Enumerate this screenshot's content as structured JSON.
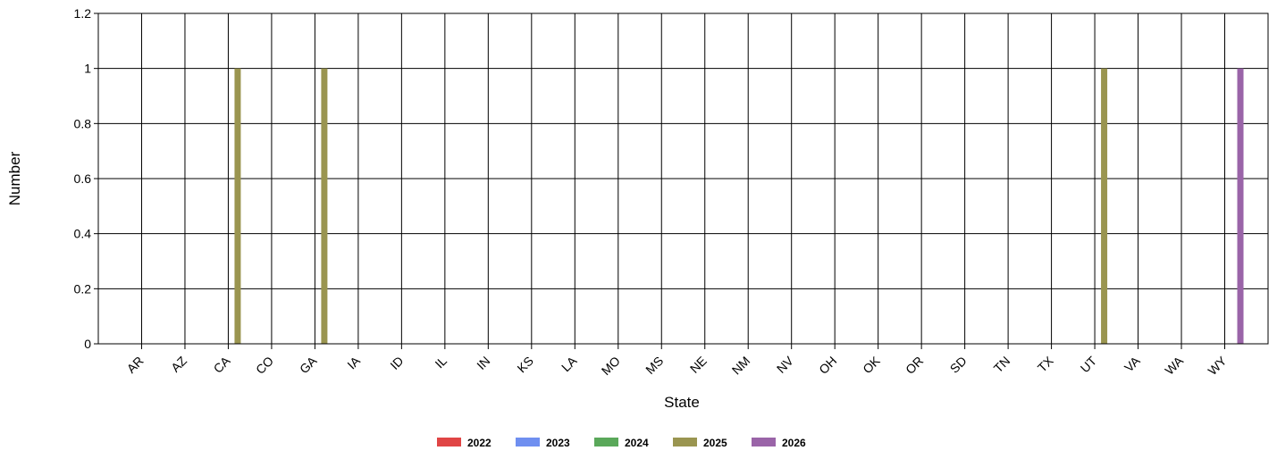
{
  "chart_data": {
    "type": "bar",
    "xlabel": "State",
    "ylabel": "Number",
    "ylim": [
      0,
      1.2
    ],
    "yticks": [
      "0",
      "0.2",
      "0.4",
      "0.6",
      "0.8",
      "1",
      "1.2"
    ],
    "grid": true,
    "legend_placement": "bottom",
    "categories": [
      "AR",
      "AZ",
      "CA",
      "CO",
      "GA",
      "IA",
      "ID",
      "IL",
      "IN",
      "KS",
      "LA",
      "MO",
      "MS",
      "NE",
      "NM",
      "NV",
      "OH",
      "OK",
      "OR",
      "SD",
      "TN",
      "TX",
      "UT",
      "VA",
      "WA",
      "WY"
    ],
    "series": [
      {
        "name": "2022",
        "color": "#e04545",
        "values": [
          0,
          0,
          0,
          0,
          0,
          0,
          0,
          0,
          0,
          0,
          0,
          0,
          0,
          0,
          0,
          0,
          0,
          0,
          0,
          0,
          0,
          0,
          0,
          0,
          0,
          0
        ]
      },
      {
        "name": "2023",
        "color": "#6f8ff0",
        "values": [
          0,
          0,
          0,
          0,
          0,
          0,
          0,
          0,
          0,
          0,
          0,
          0,
          0,
          0,
          0,
          0,
          0,
          0,
          0,
          0,
          0,
          0,
          0,
          0,
          0,
          0
        ]
      },
      {
        "name": "2024",
        "color": "#5aa85a",
        "values": [
          0,
          0,
          0,
          0,
          0,
          0,
          0,
          0,
          0,
          0,
          0,
          0,
          0,
          0,
          0,
          0,
          0,
          0,
          0,
          0,
          0,
          0,
          0,
          0,
          0,
          0
        ]
      },
      {
        "name": "2025",
        "color": "#9a9550",
        "values": [
          0,
          0,
          1,
          0,
          1,
          0,
          0,
          0,
          0,
          0,
          0,
          0,
          0,
          0,
          0,
          0,
          0,
          0,
          0,
          0,
          0,
          0,
          1,
          0,
          0,
          0
        ]
      },
      {
        "name": "2026",
        "color": "#9a64a8",
        "values": [
          0,
          0,
          0,
          0,
          0,
          0,
          0,
          0,
          0,
          0,
          0,
          0,
          0,
          0,
          0,
          0,
          0,
          0,
          0,
          0,
          0,
          0,
          0,
          0,
          0,
          1
        ]
      }
    ]
  }
}
